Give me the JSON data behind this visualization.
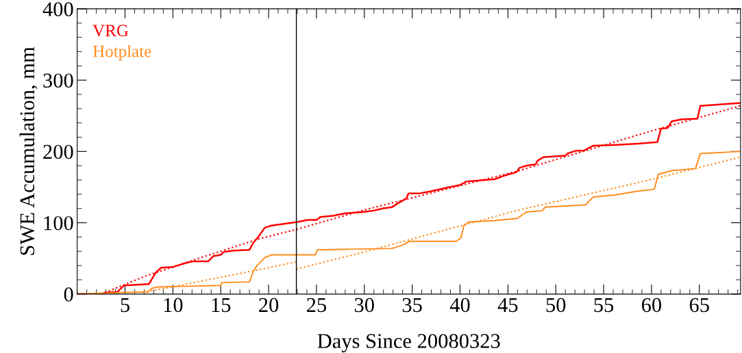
{
  "chart_data": {
    "type": "line",
    "xlabel": "Days Since 20080323",
    "ylabel": "SWE Accumulation, mm",
    "xlim": [
      0,
      69.3
    ],
    "xticks": [
      5,
      10,
      15,
      20,
      25,
      30,
      35,
      40,
      45,
      50,
      55,
      60,
      65
    ],
    "ylim": [
      0,
      400
    ],
    "yticks": [
      0,
      100,
      200,
      300,
      400
    ],
    "legend": "top left",
    "grid": false,
    "ref_lines": [
      {
        "axis": "x",
        "value": 22.9,
        "color": "#000000",
        "line_style": "solid"
      }
    ],
    "series": [
      {
        "name": "VRG",
        "color": "#ff0000",
        "line_style": "solid",
        "x": [
          0,
          2.5,
          2.9,
          4.2,
          4.9,
          7.5,
          8.2,
          8.8,
          10,
          11.2,
          12.1,
          13.7,
          14.2,
          15,
          15.3,
          16.4,
          18,
          18.4,
          18.8,
          19.6,
          20.3,
          23,
          24.1,
          25,
          25.4,
          26.8,
          27.9,
          29.8,
          31,
          31.9,
          32.9,
          33.6,
          34.4,
          34.6,
          35.7,
          36.9,
          38.9,
          40,
          40.7,
          43.6,
          44.6,
          45.9,
          46.2,
          46.9,
          47.9,
          48.1,
          48.7,
          51,
          51.2,
          52.1,
          52.9,
          53.9,
          56,
          58.6,
          60.6,
          61,
          61.7,
          62.1,
          63.1,
          64.8,
          65.1,
          69.3
        ],
        "values": [
          0,
          0,
          2,
          3,
          12,
          14,
          30,
          37,
          38,
          43,
          46,
          46,
          53,
          55,
          59,
          61,
          62,
          72,
          78,
          93,
          96,
          101,
          104,
          104,
          108,
          110,
          113,
          115,
          117,
          120,
          122,
          128,
          134,
          141,
          141,
          144,
          150,
          153,
          158,
          161,
          166,
          171,
          177,
          180,
          182,
          187,
          192,
          194,
          197,
          201,
          201,
          208,
          209,
          211,
          213,
          232,
          233,
          242,
          245,
          246,
          264,
          268
        ]
      },
      {
        "name": "Hotplate",
        "color": "#ff8c1a",
        "line_style": "solid",
        "x": [
          0,
          4.3,
          7.4,
          7.8,
          8.4,
          15,
          15.1,
          18,
          18.4,
          18.8,
          19.6,
          20.3,
          24.9,
          25.1,
          32.9,
          34.1,
          34.7,
          39.6,
          40.1,
          40.4,
          40.9,
          43.6,
          46,
          46.9,
          48.6,
          48.9,
          53.1,
          53.9,
          56.2,
          58.4,
          60.3,
          60.7,
          62.1,
          64.6,
          65.1,
          69.3
        ],
        "values": [
          0,
          2,
          3,
          8,
          10,
          12,
          16,
          17,
          32,
          40,
          51,
          55,
          55,
          62,
          64,
          69,
          74,
          74,
          79,
          96,
          101,
          103,
          106,
          115,
          117,
          122,
          125,
          136,
          139,
          144,
          147,
          168,
          173,
          176,
          197,
          200
        ]
      },
      {
        "color": "#ff0000",
        "line_style": "dotted",
        "x": [
          2.9,
          6.9,
          12,
          18.9,
          23,
          30,
          45.9,
          59.8,
          69.3
        ],
        "values": [
          2,
          24,
          47,
          77,
          91,
          118,
          172,
          228,
          264
        ]
      },
      {
        "color": "#ff8c1a",
        "line_style": "dotted",
        "x": [
          6.9,
          18.9,
          22.9
        ],
        "values": [
          2,
          34,
          45
        ]
      },
      {
        "color": "#ff8c1a",
        "line_style": "dotted",
        "x": [
          22.9,
          30,
          45.9,
          59.8,
          69.3
        ],
        "values": [
          35,
          59,
          117,
          160,
          192
        ]
      }
    ]
  }
}
